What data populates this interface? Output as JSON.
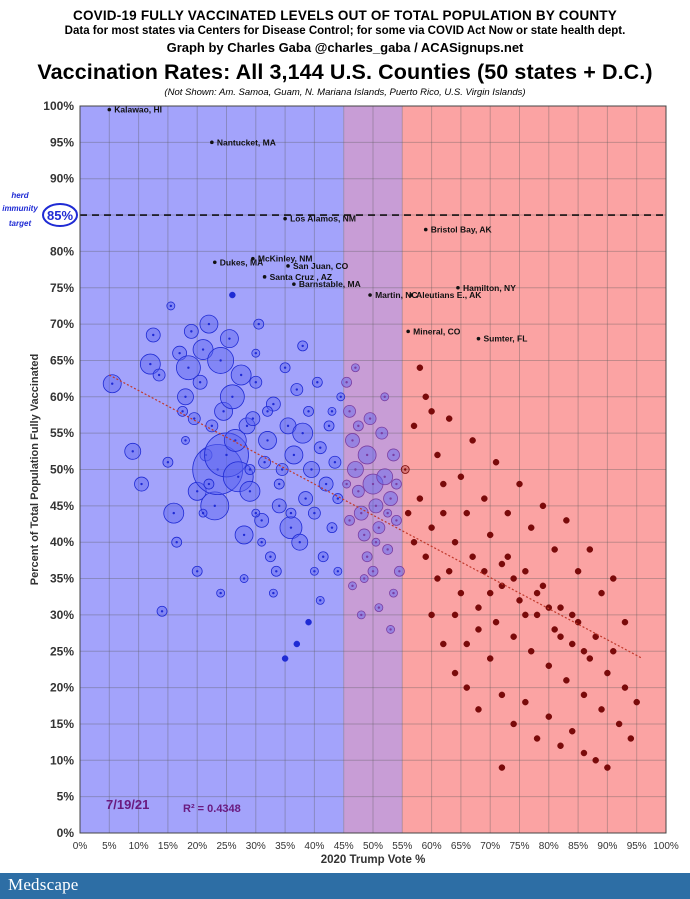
{
  "header": {
    "line1": "COVID-19 FULLY VACCINATED LEVELS OUT OF TOTAL POPULATION BY COUNTY",
    "line2": "Data for most states via Centers for Disease Control; for some via COVID Act Now or state health dept.",
    "line3": "Graph by Charles Gaba @charles_gaba / ACASignups.net",
    "title": "Vaccination Rates: All 3,144 U.S. Counties (50 states + D.C.)",
    "subtitle": "(Not Shown: Am. Samoa, Guam, N. Mariana Islands, Puerto Rico, U.S. Virgin Islands)"
  },
  "footer": {
    "logo": "Medscape"
  },
  "chart_data": {
    "type": "scatter",
    "title": "Vaccination Rates: All 3,144 U.S. Counties (50 states + D.C.)",
    "xlabel": "2020 Trump Vote %",
    "ylabel": "Percent of Total Population Fully Vaccinated",
    "xlim": [
      0,
      100
    ],
    "ylim": [
      0,
      100
    ],
    "x_ticks": [
      "0%",
      "5%",
      "10%",
      "15%",
      "20%",
      "25%",
      "30%",
      "35%",
      "40%",
      "45%",
      "50%",
      "55%",
      "60%",
      "65%",
      "70%",
      "75%",
      "80%",
      "85%",
      "90%",
      "95%",
      "100%"
    ],
    "y_ticks": [
      "0%",
      "5%",
      "10%",
      "15%",
      "20%",
      "25%",
      "30%",
      "35%",
      "40%",
      "45%",
      "50%",
      "55%",
      "60%",
      "65%",
      "70%",
      "75%",
      "80%",
      "85%",
      "90%",
      "95%",
      "100%"
    ],
    "grid": true,
    "regions": [
      {
        "from": 0,
        "to": 45,
        "color": "#a3a3fb"
      },
      {
        "from": 45,
        "to": 55,
        "color": "#c89dd6"
      },
      {
        "from": 55,
        "to": 100,
        "color": "#fba3a3"
      }
    ],
    "reference_line": {
      "y": 85,
      "label_lines": [
        "herd",
        "immunity",
        "target"
      ],
      "value_label": "85%"
    },
    "date_label": "7/19/21",
    "r_squared": "R² = 0.4348",
    "trendline": {
      "x": [
        5,
        96
      ],
      "y": [
        63,
        24
      ],
      "color": "#c0392b"
    },
    "labeled_points": [
      {
        "name": "Kalawao, HI",
        "x": 5,
        "y": 99.5
      },
      {
        "name": "Nantucket, MA",
        "x": 22.5,
        "y": 95
      },
      {
        "name": "Los Alamos, NM",
        "x": 35,
        "y": 84.5
      },
      {
        "name": "Bristol Bay, AK",
        "x": 59,
        "y": 83
      },
      {
        "name": "McKinley, NM",
        "x": 29.5,
        "y": 79
      },
      {
        "name": "Dukes, MA",
        "x": 23,
        "y": 78.5
      },
      {
        "name": "San Juan, CO",
        "x": 35.5,
        "y": 78
      },
      {
        "name": "Santa Cruz , AZ",
        "x": 31.5,
        "y": 76.5
      },
      {
        "name": "Barnstable, MA",
        "x": 36.5,
        "y": 75.5
      },
      {
        "name": "Hamilton, NY",
        "x": 64.5,
        "y": 75
      },
      {
        "name": "Aleutians E., AK",
        "x": 56.5,
        "y": 74
      },
      {
        "name": "Martin, NC",
        "x": 49.5,
        "y": 74
      },
      {
        "name": "Mineral, CO",
        "x": 56,
        "y": 69
      },
      {
        "name": "Sumter, FL",
        "x": 68,
        "y": 68
      }
    ],
    "series": [
      {
        "color": "#1f2bd4",
        "values": [
          [
            5.5,
            61.8,
            9
          ],
          [
            9,
            52.5,
            8
          ],
          [
            10.5,
            48,
            7
          ],
          [
            12,
            64.5,
            10
          ],
          [
            12.5,
            68.5,
            7
          ],
          [
            13.5,
            63,
            6
          ],
          [
            14,
            30.5,
            5
          ],
          [
            15,
            51,
            5
          ],
          [
            15.5,
            72.5,
            4
          ],
          [
            16,
            44,
            10
          ],
          [
            16.5,
            40,
            5
          ],
          [
            17,
            66,
            7
          ],
          [
            17.5,
            58,
            5
          ],
          [
            18,
            60,
            8
          ],
          [
            18.5,
            64,
            12
          ],
          [
            19,
            69,
            7
          ],
          [
            19.5,
            57,
            6
          ],
          [
            20,
            47,
            9
          ],
          [
            20.5,
            62,
            7
          ],
          [
            21,
            66.5,
            10
          ],
          [
            21.5,
            52,
            6
          ],
          [
            22,
            70,
            9
          ],
          [
            22.5,
            56,
            6
          ],
          [
            23,
            45,
            14
          ],
          [
            23.5,
            50,
            25
          ],
          [
            24,
            65,
            13
          ],
          [
            24.5,
            58,
            9
          ],
          [
            25,
            52,
            22
          ],
          [
            25.5,
            68,
            9
          ],
          [
            26,
            60,
            12
          ],
          [
            26.5,
            54,
            11
          ],
          [
            27,
            49,
            15
          ],
          [
            27.5,
            63,
            10
          ],
          [
            28,
            41,
            9
          ],
          [
            28.5,
            56,
            8
          ],
          [
            29,
            47,
            10
          ],
          [
            29.5,
            57,
            7
          ],
          [
            30,
            62,
            6
          ],
          [
            30.5,
            70,
            5
          ],
          [
            31,
            43,
            7
          ],
          [
            31.5,
            51,
            6
          ],
          [
            32,
            54,
            9
          ],
          [
            32.5,
            38,
            5
          ],
          [
            33,
            59,
            7
          ],
          [
            33.5,
            36,
            5
          ],
          [
            34,
            45,
            7
          ],
          [
            34.5,
            50,
            6
          ],
          [
            35,
            64,
            5
          ],
          [
            35.5,
            56,
            8
          ],
          [
            36,
            42,
            11
          ],
          [
            36.5,
            52,
            9
          ],
          [
            37,
            61,
            6
          ],
          [
            37.5,
            40,
            8
          ],
          [
            38,
            55,
            10
          ],
          [
            38.5,
            46,
            7
          ],
          [
            39,
            58,
            5
          ],
          [
            39.5,
            50,
            8
          ],
          [
            40,
            44,
            6
          ],
          [
            40.5,
            62,
            5
          ],
          [
            41,
            53,
            6
          ],
          [
            41.5,
            38,
            5
          ],
          [
            42,
            48,
            7
          ],
          [
            42.5,
            56,
            5
          ],
          [
            43,
            42,
            5
          ],
          [
            43.5,
            51,
            6
          ],
          [
            44,
            46,
            5
          ],
          [
            44.5,
            60,
            4
          ],
          [
            44,
            36,
            4
          ],
          [
            41,
            32,
            4
          ],
          [
            39,
            29,
            3
          ],
          [
            37,
            26,
            3
          ],
          [
            35,
            24,
            3
          ],
          [
            33,
            33,
            4
          ],
          [
            31,
            40,
            4
          ],
          [
            30,
            66,
            4
          ],
          [
            26,
            74,
            3
          ],
          [
            24,
            33,
            4
          ],
          [
            20,
            36,
            5
          ],
          [
            21,
            44,
            4
          ],
          [
            18,
            54,
            4
          ],
          [
            22,
            48,
            5
          ],
          [
            28,
            35,
            4
          ],
          [
            30,
            44,
            4
          ],
          [
            40,
            36,
            4
          ],
          [
            43,
            58,
            4
          ],
          [
            38,
            67,
            5
          ],
          [
            32,
            58,
            5
          ],
          [
            34,
            48,
            5
          ],
          [
            36,
            44,
            5
          ],
          [
            29,
            50,
            5
          ]
        ]
      },
      {
        "color": "#7a3ea2",
        "values": [
          [
            45.5,
            62,
            5
          ],
          [
            46,
            58,
            6
          ],
          [
            46.5,
            54,
            7
          ],
          [
            47,
            50,
            8
          ],
          [
            47.5,
            47,
            6
          ],
          [
            48,
            44,
            7
          ],
          [
            48.5,
            41,
            6
          ],
          [
            49,
            52,
            9
          ],
          [
            49.5,
            57,
            6
          ],
          [
            50,
            48,
            10
          ],
          [
            50.5,
            45,
            7
          ],
          [
            51,
            42,
            6
          ],
          [
            51.5,
            55,
            6
          ],
          [
            52,
            49,
            8
          ],
          [
            52.5,
            39,
            5
          ],
          [
            53,
            46,
            7
          ],
          [
            53.5,
            52,
            6
          ],
          [
            54,
            43,
            5
          ],
          [
            54.5,
            36,
            5
          ],
          [
            46.5,
            34,
            4
          ],
          [
            48,
            30,
            4
          ],
          [
            50,
            36,
            5
          ],
          [
            51,
            31,
            4
          ],
          [
            53,
            28,
            4
          ],
          [
            47,
            64,
            4
          ],
          [
            52,
            60,
            4
          ],
          [
            49,
            38,
            5
          ],
          [
            54,
            48,
            5
          ],
          [
            46,
            43,
            5
          ],
          [
            50.5,
            40,
            4
          ],
          [
            47.5,
            56,
            5
          ],
          [
            52.5,
            44,
            4
          ],
          [
            48.5,
            35,
            4
          ],
          [
            45.5,
            48,
            4
          ],
          [
            53.5,
            33,
            4
          ]
        ]
      },
      {
        "color": "#7a0a0a",
        "values": [
          [
            55.5,
            50,
            4
          ],
          [
            56,
            44,
            3
          ],
          [
            57,
            40,
            3
          ],
          [
            58,
            46,
            3
          ],
          [
            59,
            38,
            3
          ],
          [
            60,
            42,
            3
          ],
          [
            61,
            35,
            3
          ],
          [
            62,
            48,
            3
          ],
          [
            63,
            36,
            3
          ],
          [
            64,
            40,
            3
          ],
          [
            65,
            33,
            3
          ],
          [
            66,
            44,
            3
          ],
          [
            67,
            38,
            3
          ],
          [
            68,
            31,
            3
          ],
          [
            69,
            36,
            3
          ],
          [
            70,
            41,
            3
          ],
          [
            71,
            29,
            3
          ],
          [
            72,
            34,
            3
          ],
          [
            73,
            38,
            3
          ],
          [
            74,
            27,
            3
          ],
          [
            75,
            32,
            3
          ],
          [
            76,
            36,
            3
          ],
          [
            77,
            25,
            3
          ],
          [
            78,
            30,
            3
          ],
          [
            79,
            34,
            3
          ],
          [
            80,
            23,
            3
          ],
          [
            81,
            28,
            3
          ],
          [
            82,
            31,
            3
          ],
          [
            83,
            21,
            3
          ],
          [
            84,
            26,
            3
          ],
          [
            85,
            29,
            3
          ],
          [
            86,
            19,
            3
          ],
          [
            87,
            24,
            3
          ],
          [
            88,
            27,
            3
          ],
          [
            89,
            17,
            3
          ],
          [
            90,
            22,
            3
          ],
          [
            91,
            25,
            3
          ],
          [
            92,
            15,
            3
          ],
          [
            93,
            20,
            3
          ],
          [
            94,
            13,
            3
          ],
          [
            95,
            18,
            3
          ],
          [
            57,
            56,
            3
          ],
          [
            59,
            60,
            3
          ],
          [
            61,
            52,
            3
          ],
          [
            63,
            57,
            3
          ],
          [
            65,
            49,
            3
          ],
          [
            67,
            54,
            3
          ],
          [
            69,
            46,
            3
          ],
          [
            71,
            51,
            3
          ],
          [
            73,
            44,
            3
          ],
          [
            75,
            48,
            3
          ],
          [
            77,
            42,
            3
          ],
          [
            79,
            45,
            3
          ],
          [
            81,
            39,
            3
          ],
          [
            83,
            43,
            3
          ],
          [
            85,
            36,
            3
          ],
          [
            87,
            39,
            3
          ],
          [
            89,
            33,
            3
          ],
          [
            91,
            35,
            3
          ],
          [
            93,
            29,
            3
          ],
          [
            60,
            30,
            3
          ],
          [
            62,
            26,
            3
          ],
          [
            64,
            22,
            3
          ],
          [
            66,
            20,
            3
          ],
          [
            68,
            17,
            3
          ],
          [
            70,
            24,
            3
          ],
          [
            72,
            19,
            3
          ],
          [
            74,
            15,
            3
          ],
          [
            76,
            18,
            3
          ],
          [
            78,
            13,
            3
          ],
          [
            80,
            16,
            3
          ],
          [
            82,
            12,
            3
          ],
          [
            84,
            14,
            3
          ],
          [
            86,
            11,
            3
          ],
          [
            88,
            10,
            3
          ],
          [
            90,
            9,
            3
          ],
          [
            72,
            9,
            3
          ],
          [
            58,
            64,
            3
          ],
          [
            60,
            58,
            3
          ],
          [
            62,
            44,
            3
          ],
          [
            64,
            30,
            3
          ],
          [
            66,
            26,
            3
          ],
          [
            68,
            28,
            3
          ],
          [
            70,
            33,
            3
          ],
          [
            72,
            37,
            3
          ],
          [
            74,
            35,
            3
          ],
          [
            76,
            30,
            3
          ],
          [
            78,
            33,
            3
          ],
          [
            80,
            31,
            3
          ],
          [
            82,
            27,
            3
          ],
          [
            84,
            30,
            3
          ],
          [
            86,
            25,
            3
          ]
        ]
      }
    ]
  }
}
